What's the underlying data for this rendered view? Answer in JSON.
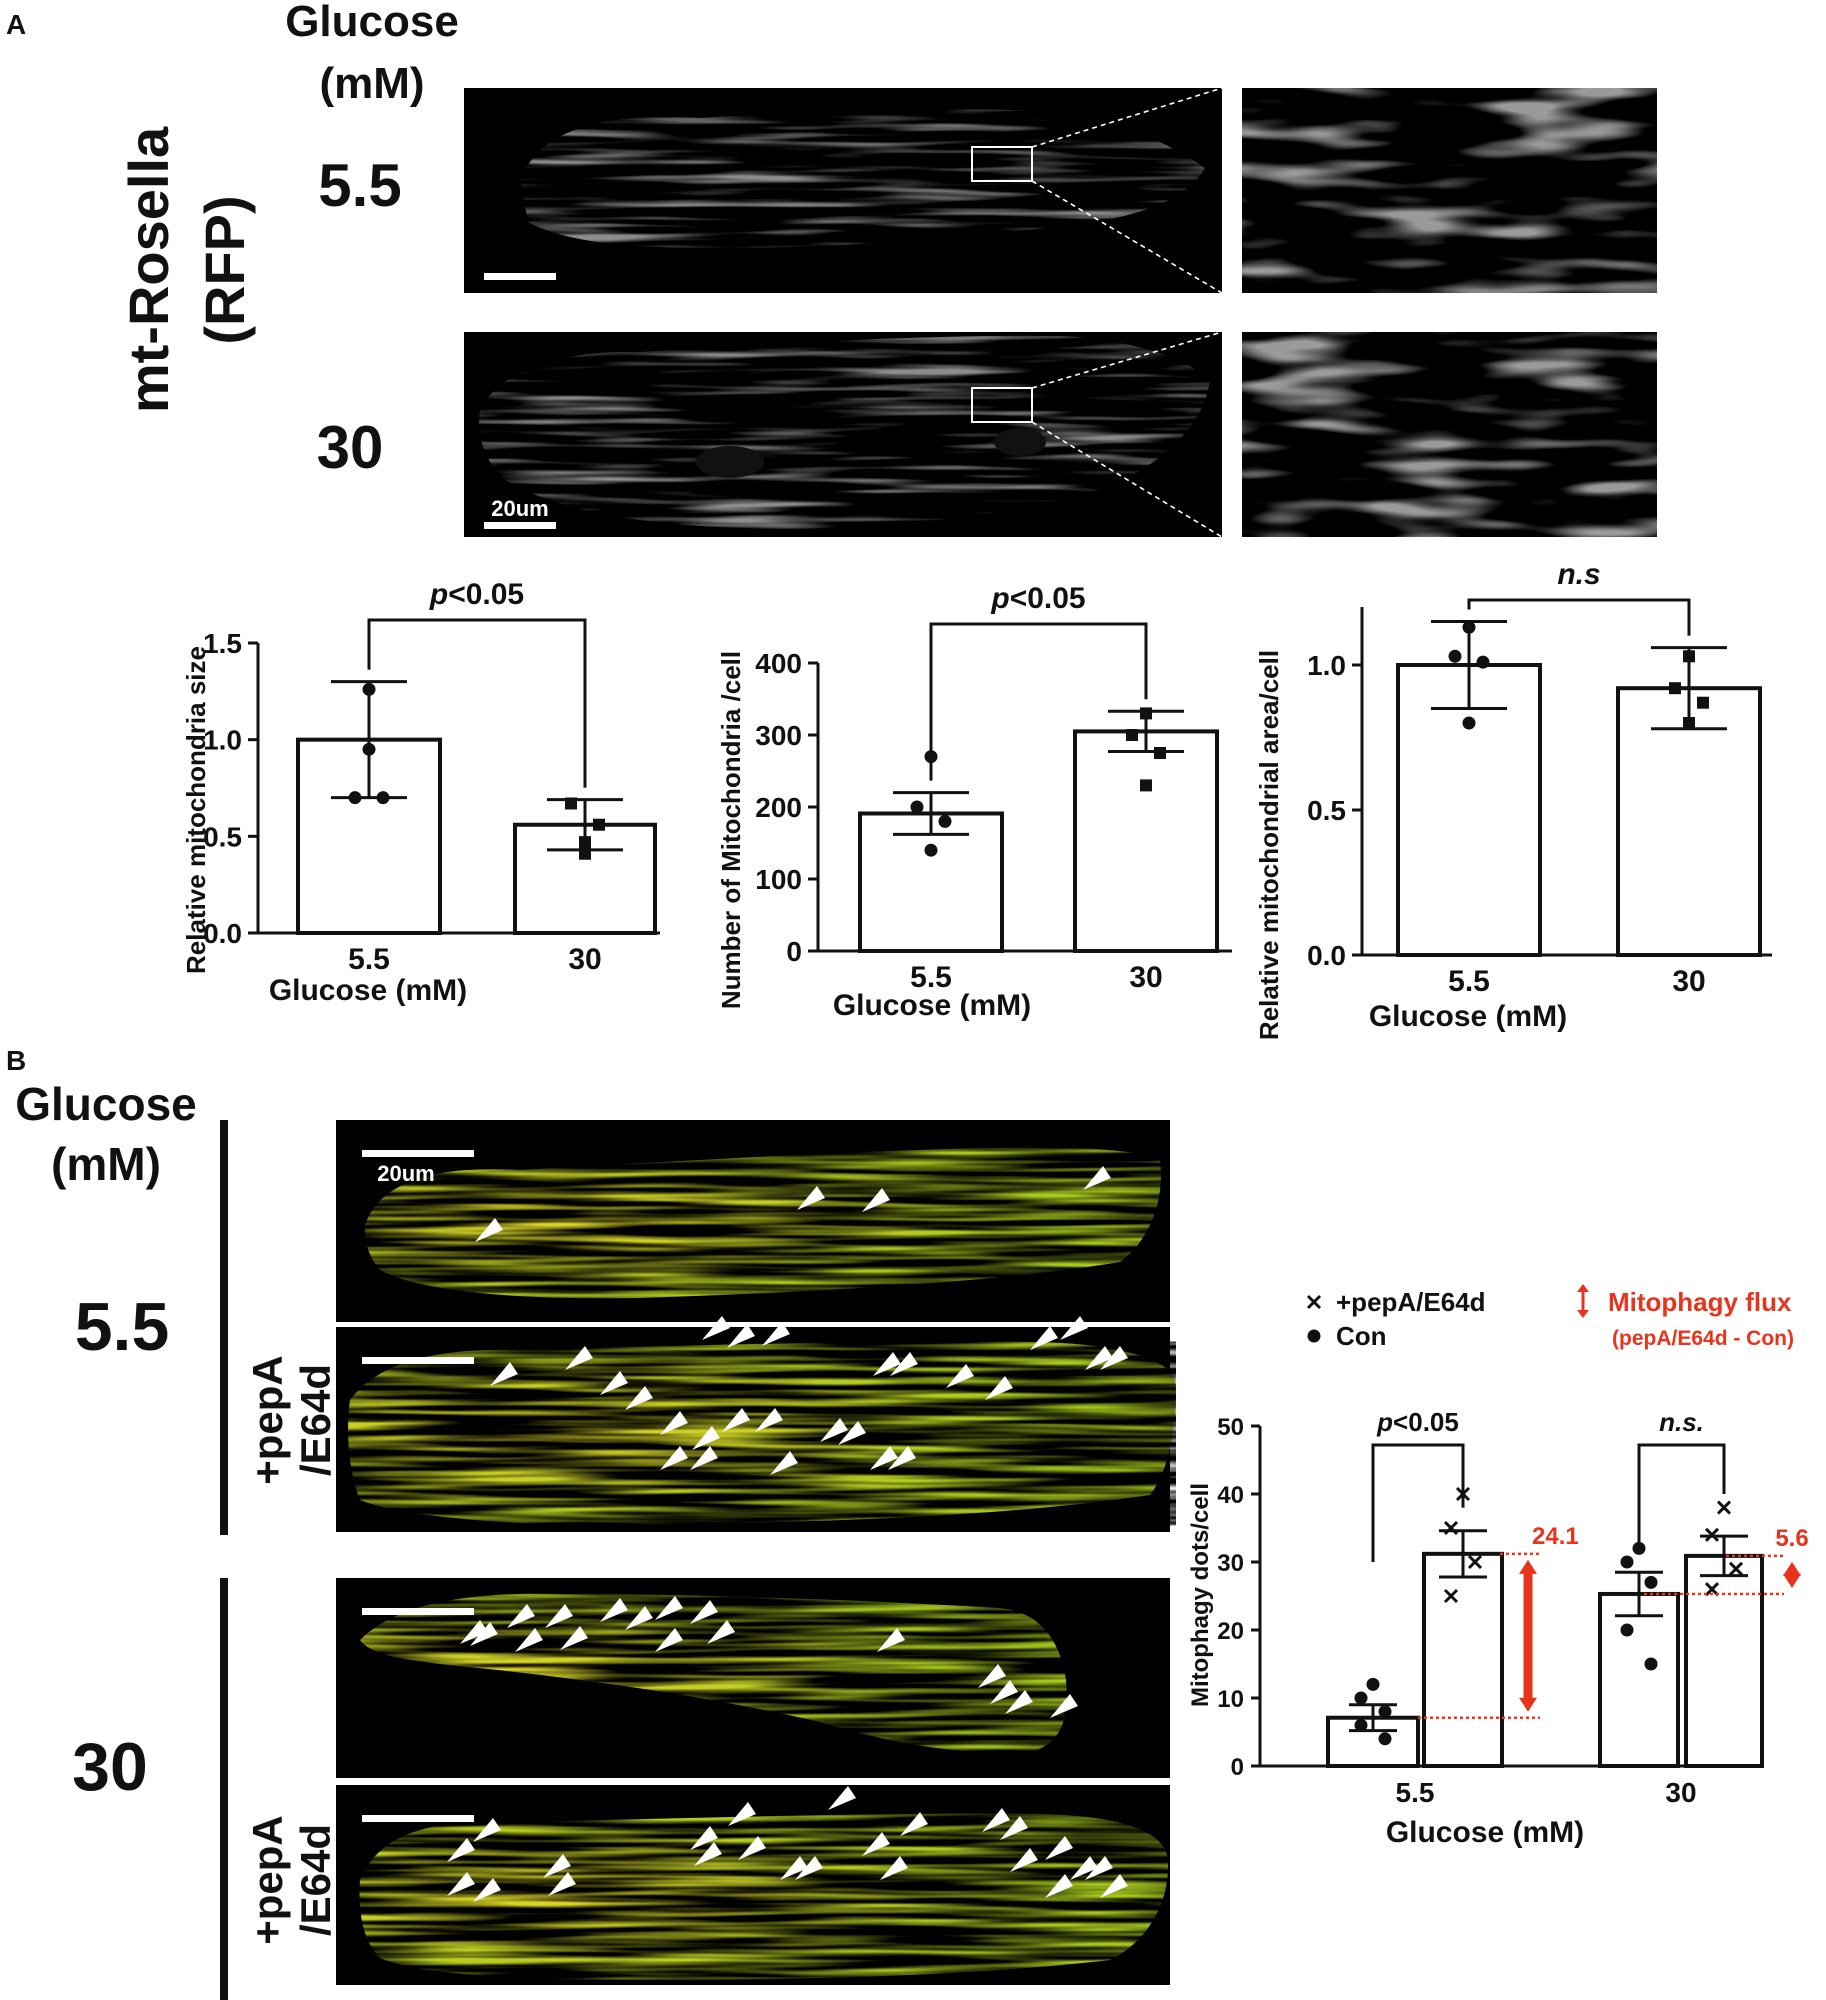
{
  "panelA": {
    "label": "A",
    "glucose_header": [
      "Glucose",
      "(mM)"
    ],
    "rotated_label": [
      "mt-Rosella",
      "(RFP)"
    ],
    "row_labels": [
      "5.5",
      "30"
    ],
    "scale_bar": "20um"
  },
  "panelB": {
    "label": "B",
    "glucose_header": [
      "Glucose",
      "(mM)"
    ],
    "row_labels": [
      "5.5",
      "30"
    ],
    "treatment_label": [
      "+pepA",
      "/E64d"
    ],
    "scale_bar": "20um",
    "legend": {
      "pep": "+pepA/E64d",
      "con": "Con"
    },
    "flux_legend": {
      "title": "Mitophagy flux",
      "sub": "(pepA/E64d - Con)"
    },
    "colors": {
      "flux": "#e8341c",
      "cell": "#a7c81e"
    }
  },
  "chart_data": [
    {
      "type": "bar",
      "ylabel": "Relative mitochondria size",
      "xlabel": "Glucose (mM)",
      "categories": [
        "5.5",
        "30"
      ],
      "values": [
        1.0,
        0.56
      ],
      "errors": [
        0.3,
        0.13
      ],
      "points": [
        [
          0.95,
          0.7,
          0.7,
          1.26
        ],
        [
          0.47,
          0.67,
          0.56,
          0.41
        ]
      ],
      "markers": [
        "circle",
        "square"
      ],
      "ylim": [
        0,
        1.5
      ],
      "yticks": [
        "0.0",
        "0.5",
        "1.0",
        "1.5"
      ],
      "sig": {
        "p": "p",
        "text": "<0.05"
      }
    },
    {
      "type": "bar",
      "ylabel": "Number of Mitochondria /cell",
      "xlabel": "Glucose (mM)",
      "categories": [
        "5.5",
        "30"
      ],
      "values": [
        191,
        305
      ],
      "errors": [
        29,
        28
      ],
      "points": [
        [
          270,
          200,
          180,
          140
        ],
        [
          330,
          300,
          275,
          230
        ]
      ],
      "markers": [
        "circle",
        "square"
      ],
      "ylim": [
        0,
        400
      ],
      "yticks": [
        "0",
        "100",
        "200",
        "300",
        "400"
      ],
      "sig": {
        "p": "p",
        "text": "<0.05"
      }
    },
    {
      "type": "bar",
      "ylabel": "Relative mitochondrial area/cell",
      "xlabel": "Glucose (mM)",
      "categories": [
        "5.5",
        "30"
      ],
      "values": [
        1.0,
        0.92
      ],
      "errors": [
        0.15,
        0.14
      ],
      "points": [
        [
          1.13,
          1.03,
          1.01,
          0.8
        ],
        [
          1.03,
          0.92,
          0.87,
          0.8
        ]
      ],
      "markers": [
        "circle",
        "square"
      ],
      "ylim": [
        0,
        1.2
      ],
      "yticks": [
        "0.0",
        "0.5",
        "1.0"
      ],
      "sig": {
        "p": "",
        "text": "n.s"
      }
    },
    {
      "type": "bar",
      "ylabel": "Mitophagy dots/cell",
      "xlabel": "Glucose (mM)",
      "categories": [
        "5.5",
        "30"
      ],
      "series": [
        {
          "name": "Con",
          "values": [
            7.1,
            25.3
          ],
          "errors": [
            1.9,
            3.2
          ],
          "points": [
            [
              12,
              10,
              8,
              6,
              4
            ],
            [
              32,
              30,
              27,
              20,
              15
            ]
          ]
        },
        {
          "name": "+pepA/E64d",
          "values": [
            31.2,
            30.9
          ],
          "errors": [
            3.4,
            2.9
          ],
          "points": [
            [
              40,
              35,
              30,
              25
            ],
            [
              38,
              34,
              29,
              26
            ]
          ]
        }
      ],
      "flux": [
        "24.1",
        "5.6"
      ],
      "ylim": [
        0,
        50
      ],
      "yticks": [
        "0",
        "10",
        "20",
        "30",
        "40",
        "50"
      ],
      "sig": [
        {
          "p": "p",
          "text": "<0.05"
        },
        {
          "p": "",
          "text": "n.s."
        }
      ]
    }
  ]
}
